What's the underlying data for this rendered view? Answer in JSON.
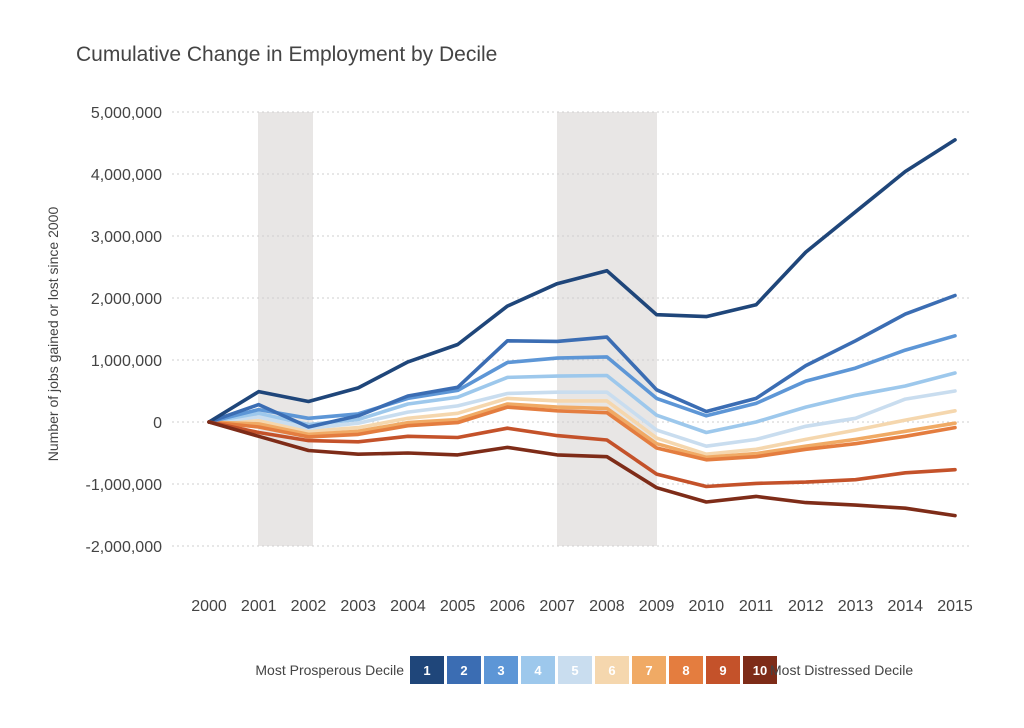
{
  "chart_data": {
    "type": "line",
    "title": "Cumulative Change in Employment by Decile",
    "ylabel": "Number of jobs gained or lost since 2000",
    "xlabel": "",
    "x": [
      2000,
      2001,
      2002,
      2003,
      2004,
      2005,
      2006,
      2007,
      2008,
      2009,
      2010,
      2011,
      2012,
      2013,
      2014,
      2015
    ],
    "x_tick_labels": [
      "2000",
      "2001",
      "2002",
      "2003",
      "2004",
      "2005",
      "2006",
      "2007",
      "2008",
      "2009",
      "2010",
      "2011",
      "2012",
      "2013",
      "2014",
      "2015"
    ],
    "ylim": [
      -2000000,
      5000000
    ],
    "y_ticks": [
      5000000,
      4000000,
      3000000,
      2000000,
      1000000,
      0,
      -1000000,
      -2000000
    ],
    "y_tick_labels": [
      "5,000,000",
      "4,000,000",
      "3,000,000",
      "2,000,000",
      "1,000,000",
      "0",
      "-1,000,000",
      "-2,000,000"
    ],
    "grid": true,
    "recession_shading": [
      [
        2001,
        2002
      ],
      [
        2007,
        2009
      ]
    ],
    "shading_color": "#e8e6e5",
    "series": [
      {
        "name": "1",
        "color": "#1f467a",
        "values": [
          0,
          490000,
          330000,
          550000,
          970000,
          1250000,
          1870000,
          2230000,
          2440000,
          1730000,
          1700000,
          1890000,
          2740000,
          3390000,
          4040000,
          4550000
        ]
      },
      {
        "name": "2",
        "color": "#3b6db3",
        "values": [
          0,
          280000,
          -80000,
          100000,
          420000,
          560000,
          1310000,
          1300000,
          1370000,
          520000,
          170000,
          380000,
          910000,
          1310000,
          1740000,
          2040000
        ]
      },
      {
        "name": "3",
        "color": "#5d96d6",
        "values": [
          0,
          200000,
          60000,
          130000,
          380000,
          510000,
          960000,
          1030000,
          1050000,
          380000,
          100000,
          300000,
          660000,
          870000,
          1160000,
          1390000
        ]
      },
      {
        "name": "4",
        "color": "#9dc8ec",
        "values": [
          0,
          140000,
          -40000,
          40000,
          290000,
          400000,
          720000,
          740000,
          750000,
          110000,
          -170000,
          0,
          240000,
          430000,
          580000,
          790000
        ]
      },
      {
        "name": "5",
        "color": "#c9ddef",
        "values": [
          0,
          80000,
          -100000,
          -20000,
          160000,
          260000,
          460000,
          480000,
          480000,
          -130000,
          -390000,
          -280000,
          -70000,
          60000,
          370000,
          500000
        ]
      },
      {
        "name": "6",
        "color": "#f5d7ae",
        "values": [
          0,
          20000,
          -150000,
          -90000,
          60000,
          140000,
          380000,
          340000,
          340000,
          -260000,
          -520000,
          -440000,
          -280000,
          -130000,
          30000,
          180000
        ]
      },
      {
        "name": "7",
        "color": "#f0aa65",
        "values": [
          0,
          -30000,
          -200000,
          -150000,
          -10000,
          40000,
          290000,
          240000,
          220000,
          -350000,
          -570000,
          -510000,
          -390000,
          -280000,
          -150000,
          -20000
        ]
      },
      {
        "name": "8",
        "color": "#e47d3f",
        "values": [
          0,
          -80000,
          -240000,
          -200000,
          -60000,
          -10000,
          240000,
          180000,
          150000,
          -420000,
          -610000,
          -560000,
          -440000,
          -350000,
          -230000,
          -90000
        ]
      },
      {
        "name": "9",
        "color": "#c4522a",
        "values": [
          0,
          -170000,
          -300000,
          -320000,
          -230000,
          -250000,
          -100000,
          -220000,
          -290000,
          -840000,
          -1040000,
          -990000,
          -970000,
          -930000,
          -820000,
          -770000
        ]
      },
      {
        "name": "10",
        "color": "#7e2c18",
        "values": [
          0,
          -230000,
          -460000,
          -520000,
          -500000,
          -530000,
          -410000,
          -530000,
          -560000,
          -1060000,
          -1290000,
          -1200000,
          -1300000,
          -1340000,
          -1390000,
          -1510000
        ]
      }
    ],
    "legend": {
      "placement": "bottom",
      "left_label": "Most Prosperous Decile",
      "right_label": "Most Distressed Decile"
    }
  }
}
